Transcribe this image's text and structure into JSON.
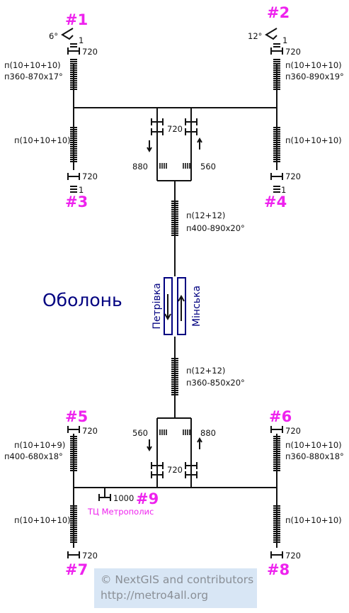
{
  "station": {
    "name": "Оболонь",
    "platform_left": "Петрівка",
    "platform_right": "Мінська"
  },
  "colors": {
    "accent": "#ee22ee",
    "station": "#000080",
    "line": "#111111",
    "credit_bg": "#d8e6f5",
    "credit_text": "#8a8f96"
  },
  "exits": {
    "e1": "#1",
    "e2": "#2",
    "e3": "#3",
    "e4": "#4",
    "e5": "#5",
    "e6": "#6",
    "e7": "#7",
    "e8": "#8",
    "e9": "#9",
    "e9_place": "ТЦ Метрополис"
  },
  "labels": {
    "ramp1": "6°",
    "ramp2": "12°",
    "one": "1",
    "w720": "720",
    "w880": "880",
    "w560": "560",
    "w1000": "1000",
    "st1a": "п(10+10+10)",
    "st1b": "п360-870х17°",
    "st2a": "п(10+10+10)",
    "st2b": "п360-890х19°",
    "st3": "п(10+10+10)",
    "st4": "п(10+10+10)",
    "stN_a": "п(12+12)",
    "stN_b": "п400-890х20°",
    "stS_a": "п(12+12)",
    "stS_b": "п360-850х20°",
    "st5a": "п(10+10+9)",
    "st5b": "п400-680х18°",
    "st6a": "п(10+10+10)",
    "st6b": "п360-880х18°",
    "st7": "п(10+10+10)",
    "st8": "п(10+10+10)"
  },
  "credit": {
    "line1": "© NextGIS and contributors",
    "line2": "http://metro4all.org"
  }
}
